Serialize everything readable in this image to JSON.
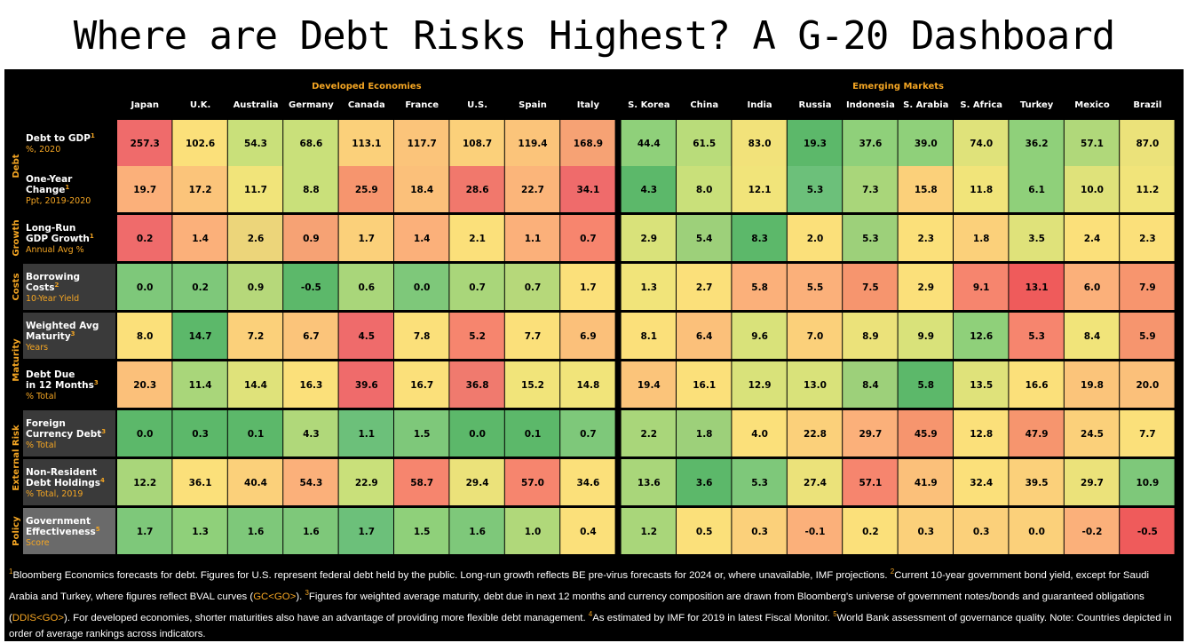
{
  "title": "Where are Debt Risks Highest? A G-20 Dashboard",
  "group_labels": {
    "developed": "Developed Economies",
    "emerging": "Emerging Markets"
  },
  "countries": [
    "Japan",
    "U.K.",
    "Australia",
    "Germany",
    "Canada",
    "France",
    "U.S.",
    "Spain",
    "Italy",
    "S. Korea",
    "China",
    "India",
    "Russia",
    "Indonesia",
    "S. Arabia",
    "S. Africa",
    "Turkey",
    "Mexico",
    "Brazil"
  ],
  "categories": [
    "Debt",
    "Growth",
    "Costs",
    "Maturity",
    "External Risk",
    "Policy"
  ],
  "rows": [
    {
      "l1": "Debt to GDP",
      "l2": "",
      "sup": "1",
      "unit": "%, 2020",
      "values": [
        "257.3",
        "102.6",
        "54.3",
        "68.6",
        "113.1",
        "117.7",
        "108.7",
        "119.4",
        "168.9",
        "44.4",
        "61.5",
        "83.0",
        "19.3",
        "37.6",
        "39.0",
        "74.0",
        "36.2",
        "57.1",
        "87.0"
      ]
    },
    {
      "l1": "One-Year",
      "l2": "Change",
      "sup": "1",
      "unit": "Ppt, 2019-2020",
      "values": [
        "19.7",
        "17.2",
        "11.7",
        "8.8",
        "25.9",
        "18.4",
        "28.6",
        "22.7",
        "34.1",
        "4.3",
        "8.0",
        "12.1",
        "5.3",
        "7.3",
        "15.8",
        "11.8",
        "6.1",
        "10.0",
        "11.2"
      ]
    },
    {
      "l1": "Long-Run",
      "l2": "GDP Growth",
      "sup": "1",
      "unit": "Annual Avg %",
      "values": [
        "0.2",
        "1.4",
        "2.6",
        "0.9",
        "1.7",
        "1.4",
        "2.1",
        "1.1",
        "0.7",
        "2.9",
        "5.4",
        "8.3",
        "2.0",
        "5.3",
        "2.3",
        "1.8",
        "3.5",
        "2.4",
        "2.3"
      ]
    },
    {
      "l1": "Borrowing",
      "l2": "Costs",
      "sup": "2",
      "unit": "10-Year Yield",
      "values": [
        "0.0",
        "0.2",
        "0.9",
        "-0.5",
        "0.6",
        "0.0",
        "0.7",
        "0.7",
        "1.7",
        "1.3",
        "2.7",
        "5.8",
        "5.5",
        "7.5",
        "2.9",
        "9.1",
        "13.1",
        "6.0",
        "7.9"
      ]
    },
    {
      "l1": "Weighted Avg",
      "l2": "Maturity",
      "sup": "3",
      "unit": "Years",
      "values": [
        "8.0",
        "14.7",
        "7.2",
        "6.7",
        "4.5",
        "7.8",
        "5.2",
        "7.7",
        "6.9",
        "8.1",
        "6.4",
        "9.6",
        "7.0",
        "8.9",
        "9.9",
        "12.6",
        "5.3",
        "8.4",
        "5.9"
      ]
    },
    {
      "l1": "Debt Due",
      "l2": "in 12 Months",
      "sup": "3",
      "unit": "% Total",
      "values": [
        "20.3",
        "11.4",
        "14.4",
        "16.3",
        "39.6",
        "16.7",
        "36.8",
        "15.2",
        "14.8",
        "19.4",
        "16.1",
        "12.9",
        "13.0",
        "8.4",
        "5.8",
        "13.5",
        "16.6",
        "19.8",
        "20.0"
      ]
    },
    {
      "l1": "Foreign",
      "l2": "Currency Debt",
      "sup": "3",
      "unit": "% Total",
      "values": [
        "0.0",
        "0.3",
        "0.1",
        "4.3",
        "1.1",
        "1.5",
        "0.0",
        "0.1",
        "0.7",
        "2.2",
        "1.8",
        "4.0",
        "22.8",
        "29.7",
        "45.9",
        "12.8",
        "47.9",
        "24.5",
        "7.7"
      ]
    },
    {
      "l1": "Non-Resident",
      "l2": "Debt Holdings",
      "sup": "4",
      "unit": "% Total, 2019",
      "values": [
        "12.2",
        "36.1",
        "40.4",
        "54.3",
        "22.9",
        "58.7",
        "29.4",
        "57.0",
        "34.6",
        "13.6",
        "3.6",
        "5.3",
        "27.4",
        "57.1",
        "41.9",
        "32.4",
        "39.5",
        "29.7",
        "10.9"
      ]
    },
    {
      "l1": "Government",
      "l2": "Effectiveness",
      "sup": "5",
      "unit": "Score",
      "values": [
        "1.7",
        "1.3",
        "1.6",
        "1.6",
        "1.7",
        "1.5",
        "1.6",
        "1.0",
        "0.4",
        "1.2",
        "0.5",
        "0.3",
        "-0.1",
        "0.2",
        "0.3",
        "0.3",
        "0.0",
        "-0.2",
        "-0.5"
      ]
    }
  ],
  "cell_colors": [
    [
      "#ef6b6b",
      "#fbe07a",
      "#c9e07a",
      "#c9e07a",
      "#fbd07a",
      "#fbc47a",
      "#fbd07a",
      "#fbc47a",
      "#f6a274",
      "#8fd07a",
      "#b9dc7a",
      "#f2e27a",
      "#5cb86a",
      "#8fd07a",
      "#8fd07a",
      "#dfe27a",
      "#8fd07a",
      "#b0d87a",
      "#ebe27a"
    ],
    [
      "#fbb07a",
      "#fbc47a",
      "#f1e47a",
      "#c9e07a",
      "#f6956e",
      "#fbc07a",
      "#f1786c",
      "#fbb57a",
      "#ef6b6b",
      "#5cb86a",
      "#c9e07a",
      "#f1e47a",
      "#6cc07a",
      "#a9d67a",
      "#fbd07a",
      "#f1e47a",
      "#8fd07a",
      "#dfe27a",
      "#f1e47a"
    ],
    [
      "#ef6b6b",
      "#fbb07a",
      "#ecd57a",
      "#f6a274",
      "#fbd07a",
      "#fbb07a",
      "#fbe07a",
      "#fbb07a",
      "#f7856e",
      "#d9e27a",
      "#9dd07a",
      "#5cb86a",
      "#fbe07a",
      "#9dd07a",
      "#fbe07a",
      "#fbd07a",
      "#dfe27a",
      "#fbe07a",
      "#fbe07a"
    ],
    [
      "#7ec87a",
      "#7ec87a",
      "#b6d87a",
      "#5cb86a",
      "#a9d67a",
      "#7ec87a",
      "#a9d67a",
      "#b6d87a",
      "#fbe07a",
      "#f1e47a",
      "#fbe07a",
      "#fbb07a",
      "#fbb07a",
      "#f6956e",
      "#fbe07a",
      "#f6856e",
      "#ef5b5b",
      "#fbb07a",
      "#f7956e"
    ],
    [
      "#fbe07a",
      "#5cb86a",
      "#fbd07a",
      "#fbc47a",
      "#ef6b6b",
      "#fbe07a",
      "#f6856e",
      "#fbe07a",
      "#fbc07a",
      "#fbe07a",
      "#fbc07a",
      "#d9e27a",
      "#fbd07a",
      "#ebe27a",
      "#d9e27a",
      "#8fd07a",
      "#f6856e",
      "#f1e47a",
      "#f6956e"
    ],
    [
      "#fbc07a",
      "#a9d67a",
      "#dfe27a",
      "#fbe07a",
      "#ef6b6b",
      "#fbe07a",
      "#f07a6e",
      "#f1e47a",
      "#f1e47a",
      "#fbc47a",
      "#fbe07a",
      "#d9e27a",
      "#d9e27a",
      "#9dd07a",
      "#5cb86a",
      "#dfe27a",
      "#fbe07a",
      "#fbc47a",
      "#fbc07a"
    ],
    [
      "#5cb86a",
      "#5cb86a",
      "#5cb86a",
      "#b0d87a",
      "#6cc07a",
      "#7ec87a",
      "#5cb86a",
      "#5cb86a",
      "#7ec87a",
      "#a9d67a",
      "#9dd07a",
      "#fbe07a",
      "#fbd07a",
      "#fbb07a",
      "#f6956e",
      "#fbe07a",
      "#f6956e",
      "#fbd07a",
      "#fbe07a"
    ],
    [
      "#a9d67a",
      "#fbe07a",
      "#fbd07a",
      "#fbb07a",
      "#c9e07a",
      "#f6856e",
      "#ebe27a",
      "#f6856e",
      "#fbe07a",
      "#a9d67a",
      "#5cb86a",
      "#7ec87a",
      "#ebe27a",
      "#f6856e",
      "#fbc07a",
      "#fbe07a",
      "#fbd07a",
      "#ebe27a",
      "#7ec87a"
    ],
    [
      "#7ec87a",
      "#8fd07a",
      "#7ec87a",
      "#7ec87a",
      "#6cc07a",
      "#8fd07a",
      "#7ec87a",
      "#b0d87a",
      "#fbe07a",
      "#a9d67a",
      "#fbe07a",
      "#fbd07a",
      "#fbb07a",
      "#fbe07a",
      "#fbd07a",
      "#fbd07a",
      "#fbd07a",
      "#fbb07a",
      "#ef5b5b"
    ]
  ],
  "label_colors": [
    "#000000",
    "#000000",
    "#000000",
    "#3a3a3a",
    "#3a3a3a",
    "#000000",
    "#3a3a3a",
    "#3a3a3a",
    "#6a6a6a"
  ],
  "accent_color": "#f5a623",
  "footnote": {
    "p1_sup": "1",
    "p1": "Bloomberg Economics forecasts for debt. Figures for U.S. represent federal debt held by the public. Long-run growth reflects BE pre-virus forecasts for 2024 or, where unavailable, IMF projections. ",
    "p2_sup": "2",
    "p2a": "Current 10-year government bond yield, except for Saudi Arabia and Turkey, where figures reflect BVAL curves (",
    "code1": "GC<GO>",
    "p2b": "). ",
    "p3_sup": "3",
    "p3a": "Figures for weighted average maturity, debt due in next 12 months and currency composition are drawn from Bloomberg's universe of government notes/bonds and guaranteed obligations (",
    "code2": "DDIS<GO>",
    "p3b": "). For developed economies, shorter maturities also have an advantage of providing more flexible debt management. ",
    "p4_sup": "4",
    "p4": "As estimated by IMF for 2019 in latest Fiscal Monitor. ",
    "p5_sup": "5",
    "p5": "World Bank assessment of governance quality. Note: Countries depicted in order of average rankings across indicators."
  },
  "chart_data": {
    "type": "heatmap",
    "title": "Where are Debt Risks Highest? A G-20 Dashboard",
    "x": [
      "Japan",
      "U.K.",
      "Australia",
      "Germany",
      "Canada",
      "France",
      "U.S.",
      "Spain",
      "Italy",
      "S. Korea",
      "China",
      "India",
      "Russia",
      "Indonesia",
      "S. Arabia",
      "S. Africa",
      "Turkey",
      "Mexico",
      "Brazil"
    ],
    "x_groups": [
      {
        "name": "Developed Economies",
        "count": 9
      },
      {
        "name": "Emerging Markets",
        "count": 10
      }
    ],
    "y": [
      "Debt to GDP (%, 2020)",
      "One-Year Change (Ppt, 2019-2020)",
      "Long-Run GDP Growth (Annual Avg %)",
      "Borrowing Costs (10-Year Yield)",
      "Weighted Avg Maturity (Years)",
      "Debt Due in 12 Months (% Total)",
      "Foreign Currency Debt (% Total)",
      "Non-Resident Debt Holdings (% Total, 2019)",
      "Government Effectiveness (Score)"
    ],
    "y_groups": [
      {
        "name": "Debt",
        "count": 2
      },
      {
        "name": "Growth",
        "count": 1
      },
      {
        "name": "Costs",
        "count": 1
      },
      {
        "name": "Maturity",
        "count": 2
      },
      {
        "name": "External Risk",
        "count": 2
      },
      {
        "name": "Policy",
        "count": 1
      }
    ],
    "values": [
      [
        257.3,
        102.6,
        54.3,
        68.6,
        113.1,
        117.7,
        108.7,
        119.4,
        168.9,
        44.4,
        61.5,
        83.0,
        19.3,
        37.6,
        39.0,
        74.0,
        36.2,
        57.1,
        87.0
      ],
      [
        19.7,
        17.2,
        11.7,
        8.8,
        25.9,
        18.4,
        28.6,
        22.7,
        34.1,
        4.3,
        8.0,
        12.1,
        5.3,
        7.3,
        15.8,
        11.8,
        6.1,
        10.0,
        11.2
      ],
      [
        0.2,
        1.4,
        2.6,
        0.9,
        1.7,
        1.4,
        2.1,
        1.1,
        0.7,
        2.9,
        5.4,
        8.3,
        2.0,
        5.3,
        2.3,
        1.8,
        3.5,
        2.4,
        2.3
      ],
      [
        0.0,
        0.2,
        0.9,
        -0.5,
        0.6,
        0.0,
        0.7,
        0.7,
        1.7,
        1.3,
        2.7,
        5.8,
        5.5,
        7.5,
        2.9,
        9.1,
        13.1,
        6.0,
        7.9
      ],
      [
        8.0,
        14.7,
        7.2,
        6.7,
        4.5,
        7.8,
        5.2,
        7.7,
        6.9,
        8.1,
        6.4,
        9.6,
        7.0,
        8.9,
        9.9,
        12.6,
        5.3,
        8.4,
        5.9
      ],
      [
        20.3,
        11.4,
        14.4,
        16.3,
        39.6,
        16.7,
        36.8,
        15.2,
        14.8,
        19.4,
        16.1,
        12.9,
        13.0,
        8.4,
        5.8,
        13.5,
        16.6,
        19.8,
        20.0
      ],
      [
        0.0,
        0.3,
        0.1,
        4.3,
        1.1,
        1.5,
        0.0,
        0.1,
        0.7,
        2.2,
        1.8,
        4.0,
        22.8,
        29.7,
        45.9,
        12.8,
        47.9,
        24.5,
        7.7
      ],
      [
        12.2,
        36.1,
        40.4,
        54.3,
        22.9,
        58.7,
        29.4,
        57.0,
        34.6,
        13.6,
        3.6,
        5.3,
        27.4,
        57.1,
        41.9,
        32.4,
        39.5,
        29.7,
        10.9
      ],
      [
        1.7,
        1.3,
        1.6,
        1.6,
        1.7,
        1.5,
        1.6,
        1.0,
        0.4,
        1.2,
        0.5,
        0.3,
        -0.1,
        0.2,
        0.3,
        0.3,
        0.0,
        -0.2,
        -0.5
      ]
    ],
    "color_scale": "green (lower risk) to yellow to red (higher risk)"
  }
}
